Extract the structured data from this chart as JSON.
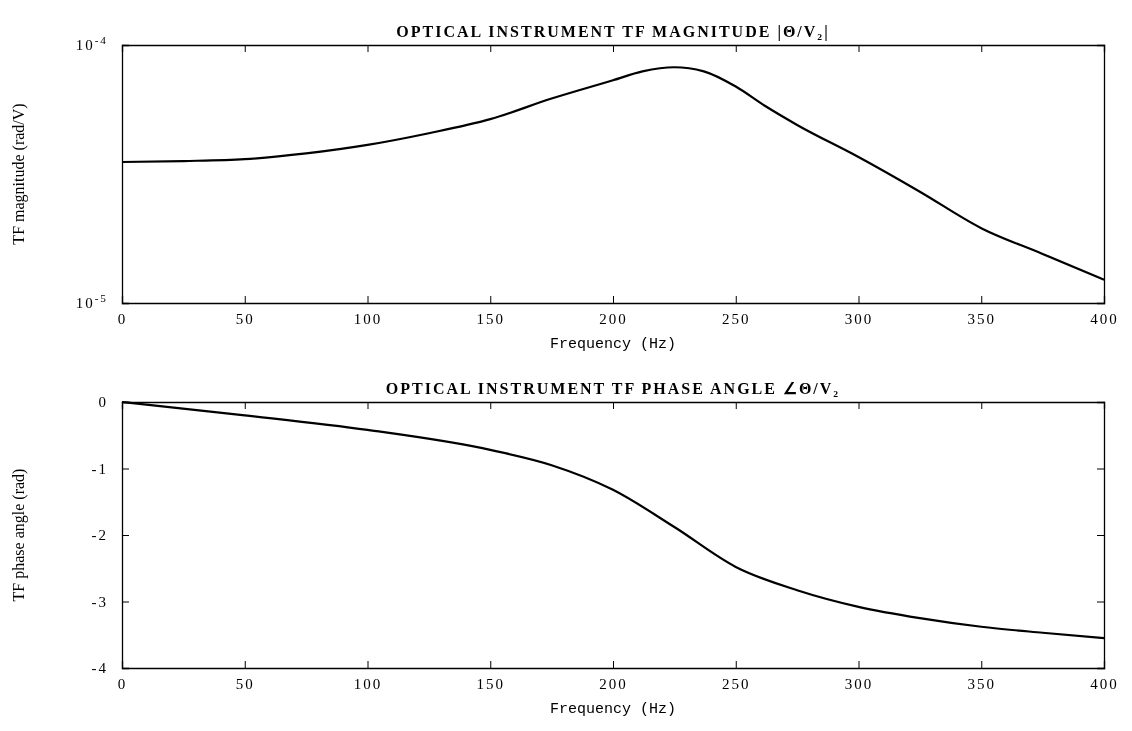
{
  "chart_data": [
    {
      "type": "line",
      "title": "OPTICAL INSTRUMENT TF MAGNITUDE |Θ/V₂|",
      "xlabel": "Frequency (Hz)",
      "ylabel": "TF magnitude (rad/V)",
      "log": "y",
      "x": [
        0,
        25,
        50,
        75,
        100,
        125,
        150,
        175,
        200,
        212,
        225,
        237,
        250,
        262,
        275,
        300,
        325,
        350,
        375,
        400
      ],
      "series": [
        {
          "color": "#000000",
          "values": [
            3.52e-05,
            3.55e-05,
            3.61e-05,
            3.8e-05,
            4.1e-05,
            4.55e-05,
            5.16e-05,
            6.2e-05,
            7.3e-05,
            7.9e-05,
            8.2e-05,
            7.9e-05,
            6.9e-05,
            5.8e-05,
            4.9e-05,
            3.68e-05,
            2.7e-05,
            1.95e-05,
            1.55e-05,
            1.23e-05
          ]
        }
      ],
      "xlim": [
        0,
        400
      ],
      "ylim": [
        1e-05,
        0.0001
      ],
      "xticks": [
        0,
        50,
        100,
        150,
        200,
        250,
        300,
        350,
        400
      ],
      "yticks": [
        {
          "value": 1e-05,
          "label": "10$^{-5}$"
        },
        {
          "value": 0.0001,
          "label": "10$^{-4}$"
        }
      ]
    },
    {
      "type": "line",
      "title": "OPTICAL INSTRUMENT TF PHASE ANGLE ∠Θ/V₂",
      "xlabel": "Frequency (Hz)",
      "ylabel": "TF phase angle (rad)",
      "x": [
        0,
        50,
        100,
        150,
        175,
        200,
        225,
        250,
        275,
        300,
        325,
        350,
        375,
        400
      ],
      "series": [
        {
          "color": "#000000",
          "values": [
            0,
            -0.2,
            -0.42,
            -0.72,
            -0.95,
            -1.32,
            -1.88,
            -2.48,
            -2.83,
            -3.08,
            -3.25,
            -3.38,
            -3.47,
            -3.55
          ]
        }
      ],
      "xlim": [
        0,
        400
      ],
      "ylim": [
        -4,
        0
      ],
      "xticks": [
        0,
        50,
        100,
        150,
        200,
        250,
        300,
        350,
        400
      ],
      "yticks": [
        -4,
        -3,
        -2,
        -1,
        0
      ]
    }
  ]
}
